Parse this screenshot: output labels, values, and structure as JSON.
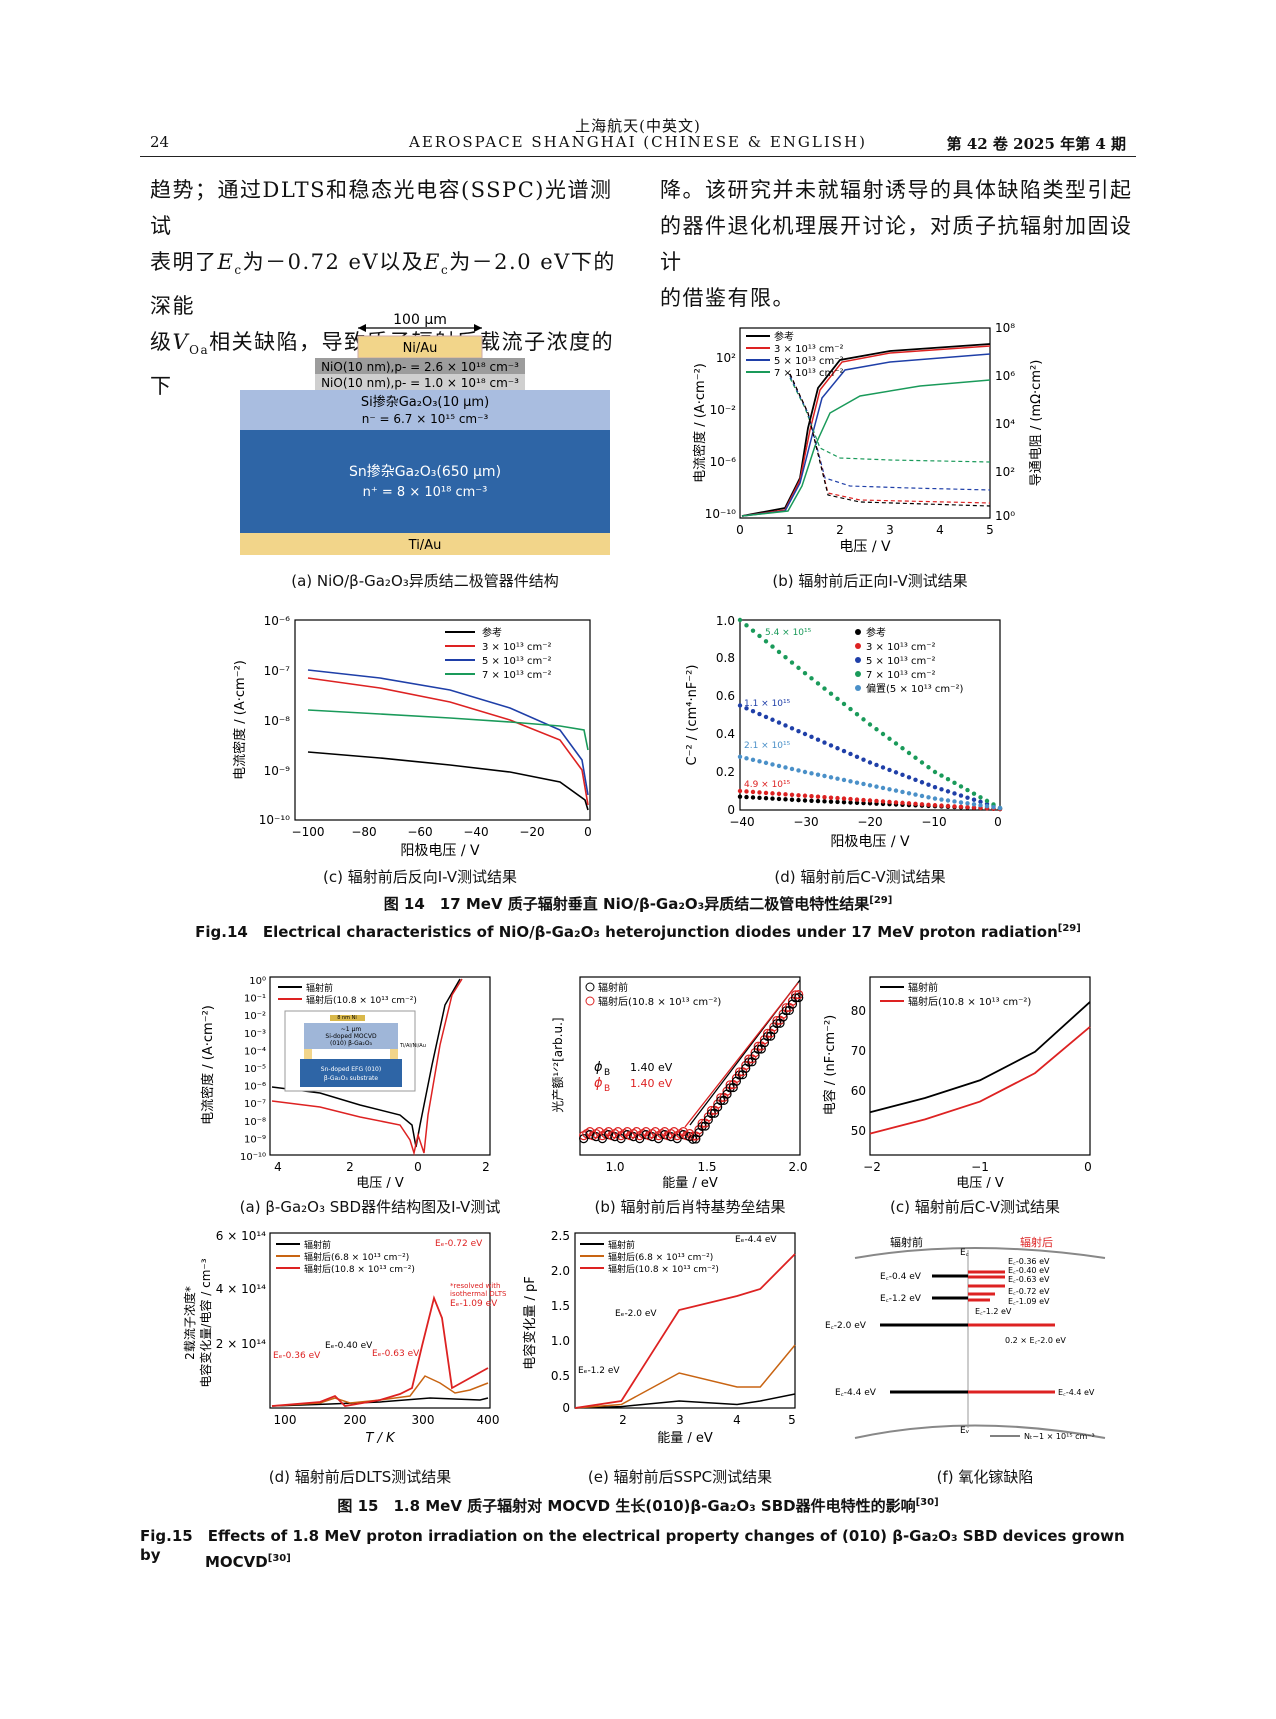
{
  "header": {
    "journal_cn": "上海航天(中英文)",
    "journal_en": "AEROSPACE SHANGHAI (CHINESE & ENGLISH)",
    "page": "24",
    "issue": "第 42 卷 2025 年第 4 期"
  },
  "body_text": {
    "left_l1": "趋势；通过DLTS和稳态光电容(SSPC)光谱测试",
    "left_l2a": "表明了",
    "left_l2b": "为－0.72 eV以及",
    "left_l2c": "为－2.0 eV下的深能",
    "left_l3a": "级",
    "left_l3b": "相关缺陷，导致质子辐射后载流子浓度的下",
    "ec": "E",
    "ec_sub": "c",
    "vo": "V",
    "vo_sub": "Oa",
    "right_l1": "降。该研究并未就辐射诱导的具体缺陷类型引起",
    "right_l2": "的器件退化机理展开讨论，对质子抗辐射加固设计",
    "right_l3": "的借鉴有限。"
  },
  "fig14": {
    "caption_cn": "图 14　17 MeV 质子辐射垂直 NiO/β-Ga₂O₃异质结二极管电特性结果",
    "caption_cn_ref": "[29]",
    "caption_en": "Fig.14　Electrical characteristics of NiO/β-Ga₂O₃ heterojunction diodes under 17 MeV proton radiation",
    "caption_en_ref": "[29]",
    "a": {
      "caption": "(a) NiO/β-Ga₂O₃异质结二极管器件结构",
      "width_label": "100 μm",
      "layer1": "Ni/Au",
      "layer2": "NiO(10 nm),p- = 2.6 × 10¹⁸ cm⁻³",
      "layer3": "NiO(10 nm),p- = 1.0 × 10¹⁸ cm⁻³",
      "layer4a": "Si掺杂Ga₂O₃(10 μm)",
      "layer4b": "n⁻ = 6.7 × 10¹⁵ cm⁻³",
      "layer5a": "Sn掺杂Ga₂O₃(650 μm)",
      "layer5b": "n⁺ = 8 × 10¹⁸ cm⁻³",
      "layer6": "Ti/Au"
    },
    "b": {
      "caption": "(b) 辐射前后正向I-V测试结果",
      "xlabel": "电压 / V",
      "ylabel": "电流密度 / (A·cm⁻²)",
      "y2label": "导通电阻 / (mΩ·cm²)",
      "xticks": [
        "0",
        "1",
        "2",
        "3",
        "4",
        "5"
      ],
      "yticks": [
        "10²",
        "10⁻²",
        "10⁻⁶",
        "10⁻¹⁰"
      ],
      "y2ticks": [
        "10⁸",
        "10⁶",
        "10⁴",
        "10²",
        "10⁰"
      ],
      "legend": [
        "参考",
        "3 × 10¹³ cm⁻²",
        "5 × 10¹³ cm⁻²",
        "7 × 10¹³ cm⁻²"
      ]
    },
    "c": {
      "caption": "(c) 辐射前后反向I-V测试结果",
      "xlabel": "阳极电压 / V",
      "ylabel": "电流密度 / (A·cm⁻²)",
      "xticks": [
        "−100",
        "−80",
        "−60",
        "−40",
        "−20",
        "0"
      ],
      "yticks": [
        "10⁻⁶",
        "10⁻⁷",
        "10⁻⁸",
        "10⁻⁹",
        "10⁻¹⁰"
      ],
      "legend": [
        "参考",
        "3 × 10¹³ cm⁻²",
        "5 × 10¹³ cm⁻²",
        "7 × 10¹³ cm⁻²"
      ]
    },
    "d": {
      "caption": "(d) 辐射前后C-V测试结果",
      "xlabel": "阳极电压 / V",
      "ylabel": "C⁻² / (cm⁴·nF⁻²)",
      "xticks": [
        "−40",
        "−30",
        "−20",
        "−10",
        "0"
      ],
      "yticks": [
        "1.0",
        "0.8",
        "0.6",
        "0.4",
        "0.2",
        "0"
      ],
      "legend": [
        "参考",
        "3 × 10¹³ cm⁻²",
        "5 × 10¹³ cm⁻²",
        "7 × 10¹³ cm⁻²",
        "偏置(5 × 10¹³ cm⁻²)"
      ],
      "ann": [
        "5.4 × 10¹⁵",
        "1.1 × 10¹⁵",
        "2.1 × 10¹⁵",
        "4.9 × 10¹⁵"
      ]
    }
  },
  "fig15": {
    "caption_cn": "图 15　1.8 MeV 质子辐射对 MOCVD 生长(010)β-Ga₂O₃ SBD器件电特性的影响",
    "caption_cn_ref": "[30]",
    "caption_en_1": "Fig.15　Effects of 1.8 MeV proton irradiation on the electrical property changes of (010) β-Ga₂O₃ SBD devices grown by",
    "caption_en_2": "MOCVD",
    "caption_en_ref": "[30]",
    "a": {
      "caption": "(a) β-Ga₂O₃ SBD器件结构图及I-V测试",
      "xlabel": "电压 / V",
      "ylabel": "电流密度 / (A·cm⁻²)",
      "xticks": [
        "4",
        "2",
        "0",
        "2"
      ],
      "yticks": [
        "10⁰",
        "10⁻¹",
        "10⁻²",
        "10⁻³",
        "10⁻⁴",
        "10⁻⁵",
        "10⁻⁶",
        "10⁻⁷",
        "10⁻⁸",
        "10⁻⁹",
        "10⁻¹⁰"
      ],
      "legend": [
        "辐射前",
        "辐射后(10.8 × 10¹³ cm⁻²)"
      ],
      "inset": [
        "8 nm Ni",
        "~1 μm",
        "Si-doped MOCVD",
        "(010) β-Ga₂O₃",
        "Ti/Al/Ni/Au",
        "Sn-doped EFG (010)",
        "β-Ga₂O₃ substrate"
      ]
    },
    "b": {
      "caption": "(b) 辐射前后肖特基势垒结果",
      "xlabel": "能量 / eV",
      "ylabel": "光产额¹ᐟ²[arb.u.]",
      "xticks": [
        "1.0",
        "1.5",
        "2.0"
      ],
      "legend": [
        "辐射前",
        "辐射后(10.8 × 10¹³ cm⁻²)"
      ],
      "phi1": "1.40 eV",
      "phi2": "1.40 eV",
      "phi_sym": "ϕ",
      "phi_sub": "B"
    },
    "c": {
      "caption": "(c) 辐射前后C-V测试结果",
      "xlabel": "电压 / V",
      "ylabel": "电容 / (nF·cm⁻²)",
      "xticks": [
        "−2",
        "−1",
        "0"
      ],
      "yticks": [
        "80",
        "70",
        "60",
        "50"
      ],
      "legend": [
        "辐射前",
        "辐射后(10.8 × 10¹³ cm⁻²)"
      ]
    },
    "d": {
      "caption": "(d) 辐射前后DLTS测试结果",
      "xlabel": "T / K",
      "ylabel1": "2载流子浓度*",
      "ylabel2": "电容变化量/电容 / cm⁻³",
      "xticks": [
        "100",
        "200",
        "300",
        "400"
      ],
      "yticks": [
        "6 × 10¹⁴",
        "4 × 10¹⁴",
        "2 × 10¹⁴"
      ],
      "legend": [
        "辐射前",
        "辐射后(6.8 × 10¹³ cm⁻²)",
        "辐射后(10.8 × 10¹³ cm⁻²)"
      ],
      "ann": [
        "Eₑ-0.72 eV",
        "Eₑ-0.40 eV",
        "Eₑ-0.36 eV",
        "Eₑ-0.63 eV",
        "*resolved with",
        "isothermal DLTS",
        "Eₑ-1.09 eV"
      ]
    },
    "e": {
      "caption": "(e) 辐射前后SSPC测试结果",
      "xlabel": "能量 / eV",
      "ylabel": "电容变化量 / pF",
      "xticks": [
        "2",
        "3",
        "4",
        "5"
      ],
      "yticks": [
        "2.5",
        "2.0",
        "1.5",
        "1.0",
        "0.5",
        "0"
      ],
      "legend": [
        "辐射前",
        "辐射后(6.8 × 10¹³ cm⁻²)",
        "辐射后(10.8 × 10¹³ cm⁻²)"
      ],
      "ann": [
        "Eₑ-4.4 eV",
        "Eₑ-2.0 eV",
        "Eₑ-1.2 eV"
      ]
    },
    "f": {
      "caption": "(f) 氧化镓缺陷",
      "left_title": "辐射前",
      "right_title": "辐射后",
      "ec": "E꜀",
      "ev": "Eᵥ",
      "left_levels": [
        "E꜀-0.4 eV",
        "E꜀-1.2 eV",
        "E꜀-2.0 eV",
        "E꜀-4.4 eV"
      ],
      "right_levels": [
        "E꜀-0.36 eV",
        "E꜀-0.40 eV",
        "E꜀-0.63 eV",
        "E꜀-0.72 eV",
        "E꜀-1.09 eV",
        "E꜀-1.2 eV",
        "0.2 × E꜀-2.0 eV",
        "E꜀-4.4 eV"
      ],
      "nt": "Nₜ~1 × 10¹⁵ cm⁻³"
    }
  },
  "chart_data": [
    {
      "type": "line",
      "ref": "fig14b",
      "x": [
        0,
        0.5,
        1,
        1.2,
        1.5,
        2,
        3,
        4,
        5
      ],
      "series": [
        {
          "name": "参考",
          "values": [
            1e-10,
            1e-10,
            3e-09,
            1e-06,
            1,
            20,
            60,
            100,
            150
          ]
        },
        {
          "name": "3 × 10¹³ cm⁻²",
          "values": [
            1e-10,
            1e-10,
            2e-09,
            1e-06,
            0.8,
            18,
            55,
            90,
            140
          ]
        },
        {
          "name": "5 × 10¹³ cm⁻²",
          "values": [
            1e-10,
            1e-10,
            2e-09,
            8e-07,
            0.5,
            12,
            35,
            60,
            80
          ]
        },
        {
          "name": "7 × 10¹³ cm⁻²",
          "values": [
            1e-10,
            1e-10,
            1e-09,
            5e-07,
            0.1,
            0.5,
            1.5,
            2.5,
            3.5
          ]
        }
      ]
    },
    {
      "type": "line",
      "ref": "fig14c",
      "x": [
        -100,
        -80,
        -60,
        -40,
        -20,
        0
      ],
      "series": [
        {
          "name": "参考",
          "values": [
            3e-09,
            2.5e-09,
            2e-09,
            1.8e-09,
            1.3e-09,
            3e-10
          ]
        },
        {
          "name": "3 × 10¹³ cm⁻²",
          "values": [
            7e-08,
            5e-08,
            3.5e-08,
            2.5e-08,
            1.5e-08,
            5e-10
          ]
        },
        {
          "name": "5 × 10¹³ cm⁻²",
          "values": [
            1e-07,
            8e-08,
            6e-08,
            4e-08,
            2e-08,
            1e-09
          ]
        },
        {
          "name": "7 × 10¹³ cm⁻²",
          "values": [
            2e-08,
            1.6e-08,
            1.3e-08,
            1e-08,
            8e-09,
            6e-09
          ]
        }
      ]
    },
    {
      "type": "scatter",
      "ref": "fig14d",
      "x": [
        -40,
        -30,
        -20,
        -10,
        0
      ],
      "series": [
        {
          "name": "参考",
          "values": [
            0.07,
            0.05,
            0.035,
            0.02,
            0.005
          ]
        },
        {
          "name": "3 × 10¹³ cm⁻²",
          "values": [
            0.1,
            0.075,
            0.05,
            0.025,
            0.005
          ]
        },
        {
          "name": "5 × 10¹³ cm⁻²",
          "values": [
            0.55,
            0.4,
            0.25,
            0.12,
            0.01
          ]
        },
        {
          "name": "7 × 10¹³ cm⁻²",
          "values": [
            1.0,
            0.72,
            0.45,
            0.2,
            0.01
          ]
        },
        {
          "name": "偏置(5 × 10¹³ cm⁻²)",
          "values": [
            0.28,
            0.2,
            0.13,
            0.06,
            0.01
          ]
        }
      ]
    },
    {
      "type": "line",
      "ref": "fig15c",
      "x": [
        -2,
        -1.5,
        -1,
        -0.5,
        0
      ],
      "series": [
        {
          "name": "辐射前",
          "values": [
            52,
            56,
            61,
            69,
            83
          ]
        },
        {
          "name": "辐射后(10.8 × 10¹³ cm⁻²)",
          "values": [
            46,
            50,
            55,
            63,
            76
          ]
        }
      ]
    },
    {
      "type": "line",
      "ref": "fig15e",
      "x": [
        1.2,
        2,
        3,
        4,
        4.4,
        5
      ],
      "series": [
        {
          "name": "辐射前",
          "values": [
            0,
            0.02,
            0.1,
            0.05,
            0.1,
            0.2
          ]
        },
        {
          "name": "辐射后(6.8 × 10¹³ cm⁻²)",
          "values": [
            0,
            0.05,
            0.5,
            0.3,
            0.3,
            0.9
          ]
        },
        {
          "name": "辐射后(10.8 × 10¹³ cm⁻²)",
          "values": [
            0,
            0.1,
            1.4,
            1.6,
            1.7,
            2.2
          ]
        }
      ]
    }
  ]
}
